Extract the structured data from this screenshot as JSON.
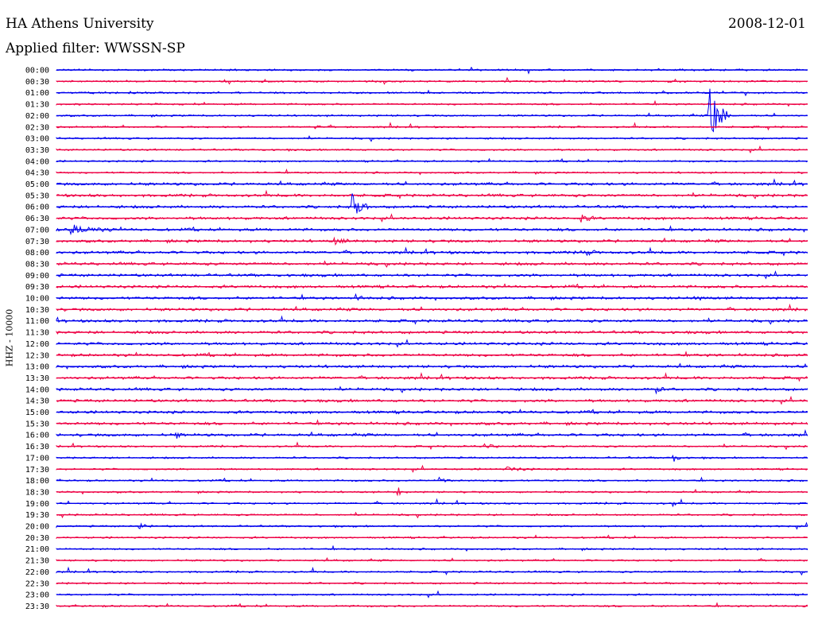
{
  "header": {
    "station": "HA Athens University",
    "date": "2008-12-01",
    "filter": "Applied filter: WWSSN-SP",
    "channel": "HHZ - 10000"
  },
  "chart_data": {
    "type": "line",
    "title": "HA Athens University",
    "ylabel": "HHZ - 10000",
    "row_labels": [
      "00:00",
      "00:30",
      "01:00",
      "01:30",
      "02:00",
      "02:30",
      "03:00",
      "03:30",
      "04:00",
      "04:30",
      "05:00",
      "05:30",
      "06:00",
      "06:30",
      "07:00",
      "07:30",
      "08:00",
      "08:30",
      "09:00",
      "09:30",
      "10:00",
      "10:30",
      "11:00",
      "11:30",
      "12:00",
      "12:30",
      "13:00",
      "13:30",
      "14:00",
      "14:30",
      "15:00",
      "15:30",
      "16:00",
      "16:30",
      "17:00",
      "17:30",
      "18:00",
      "18:30",
      "19:00",
      "19:30",
      "20:00",
      "20:30",
      "21:00",
      "21:30",
      "22:00",
      "22:30",
      "23:00",
      "23:30"
    ],
    "colors": [
      "#0000ee",
      "#ee0044"
    ],
    "events": [
      {
        "row": 4,
        "x": 0.87,
        "amp": 45,
        "len": 0.03
      },
      {
        "row": 5,
        "x": 0.345,
        "amp": 6,
        "len": 0.01
      },
      {
        "row": 12,
        "x": 0.393,
        "amp": 22,
        "len": 0.025
      },
      {
        "row": 14,
        "x": 0.02,
        "amp": 6,
        "len": 0.06
      },
      {
        "row": 15,
        "x": 0.37,
        "amp": 4,
        "len": 0.03
      },
      {
        "row": 13,
        "x": 0.7,
        "amp": 4,
        "len": 0.02
      },
      {
        "row": 20,
        "x": 0.855,
        "amp": 5,
        "len": 0.01
      },
      {
        "row": 28,
        "x": 0.8,
        "amp": 5,
        "len": 0.01
      },
      {
        "row": 32,
        "x": 0.16,
        "amp": 4,
        "len": 0.01
      },
      {
        "row": 34,
        "x": 0.82,
        "amp": 7,
        "len": 0.015
      },
      {
        "row": 36,
        "x": 0.51,
        "amp": 4,
        "len": 0.02
      },
      {
        "row": 37,
        "x": 0.455,
        "amp": 6,
        "len": 0.01
      },
      {
        "row": 38,
        "x": 0.82,
        "amp": 4,
        "len": 0.01
      },
      {
        "row": 40,
        "x": 0.11,
        "amp": 4,
        "len": 0.02
      },
      {
        "row": 16,
        "x": 0.7,
        "amp": 3,
        "len": 0.03
      },
      {
        "row": 20,
        "x": 0.4,
        "amp": 3,
        "len": 0.02
      },
      {
        "row": 33,
        "x": 0.57,
        "amp": 3,
        "len": 0.03
      },
      {
        "row": 35,
        "x": 0.6,
        "amp": 3,
        "len": 0.04
      }
    ]
  }
}
